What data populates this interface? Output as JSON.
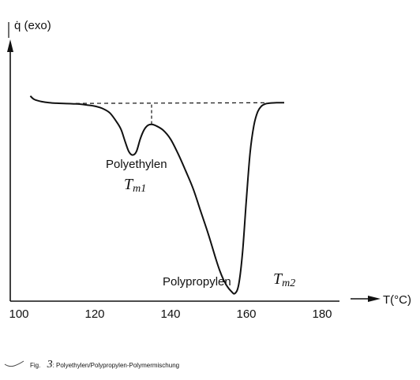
{
  "chart_data": {
    "type": "line",
    "title": "",
    "ylabel": "q̇ (exo)",
    "xlabel": "T(°C)",
    "xlim": [
      100,
      190
    ],
    "ylim": [
      0,
      1
    ],
    "x_ticks": [
      100,
      120,
      140,
      160,
      180
    ],
    "grid": false,
    "series": [
      {
        "name": "",
        "x": [
          103,
          104,
          106,
          108,
          110,
          115,
          118,
          120,
          122,
          124,
          126,
          127,
          128,
          129,
          130,
          131,
          132,
          133,
          134,
          135,
          136,
          138,
          140,
          142,
          144,
          146,
          148,
          150,
          152,
          153,
          154,
          155,
          156,
          157,
          158,
          159,
          160,
          161,
          162,
          163,
          164,
          165,
          166,
          168,
          170
        ],
        "y": [
          0.89,
          0.875,
          0.865,
          0.86,
          0.858,
          0.855,
          0.85,
          0.845,
          0.835,
          0.815,
          0.77,
          0.74,
          0.69,
          0.645,
          0.63,
          0.645,
          0.7,
          0.74,
          0.76,
          0.765,
          0.76,
          0.74,
          0.7,
          0.635,
          0.56,
          0.48,
          0.38,
          0.28,
          0.17,
          0.12,
          0.08,
          0.05,
          0.03,
          0.02,
          0.06,
          0.2,
          0.43,
          0.64,
          0.76,
          0.82,
          0.845,
          0.855,
          0.858,
          0.86,
          0.86
        ]
      }
    ],
    "baseline": {
      "x": [
        115,
        165
      ],
      "y": [
        0.857,
        0.86
      ]
    },
    "split_line": {
      "x": 135,
      "y_from": 0.765,
      "y_to": 0.858
    },
    "annotations": [
      {
        "text": "Polyethylen",
        "x": 133,
        "y": 0.55
      },
      {
        "text": "Tm1",
        "x": 133,
        "y": 0.46
      },
      {
        "text": "Polypropylen",
        "x": 146,
        "y": 0.1
      },
      {
        "text": "Tm2",
        "x": 168,
        "y": 0.1
      }
    ]
  },
  "labels": {
    "y_axis": "q̇ (exo)",
    "x_axis": "T(°C)",
    "polyethylen": "Polyethylen",
    "polypropylen": "Polypropylen",
    "tm1_main": "T",
    "tm1_sub": "m1",
    "tm2_main": "T",
    "tm2_sub": "m2",
    "caption_prefix": "Fig.",
    "caption_number": "3",
    "caption_text": ": Polyethylen/Polypropylen-Polymermischung"
  },
  "colors": {
    "ink": "#111111",
    "background": "#ffffff"
  }
}
